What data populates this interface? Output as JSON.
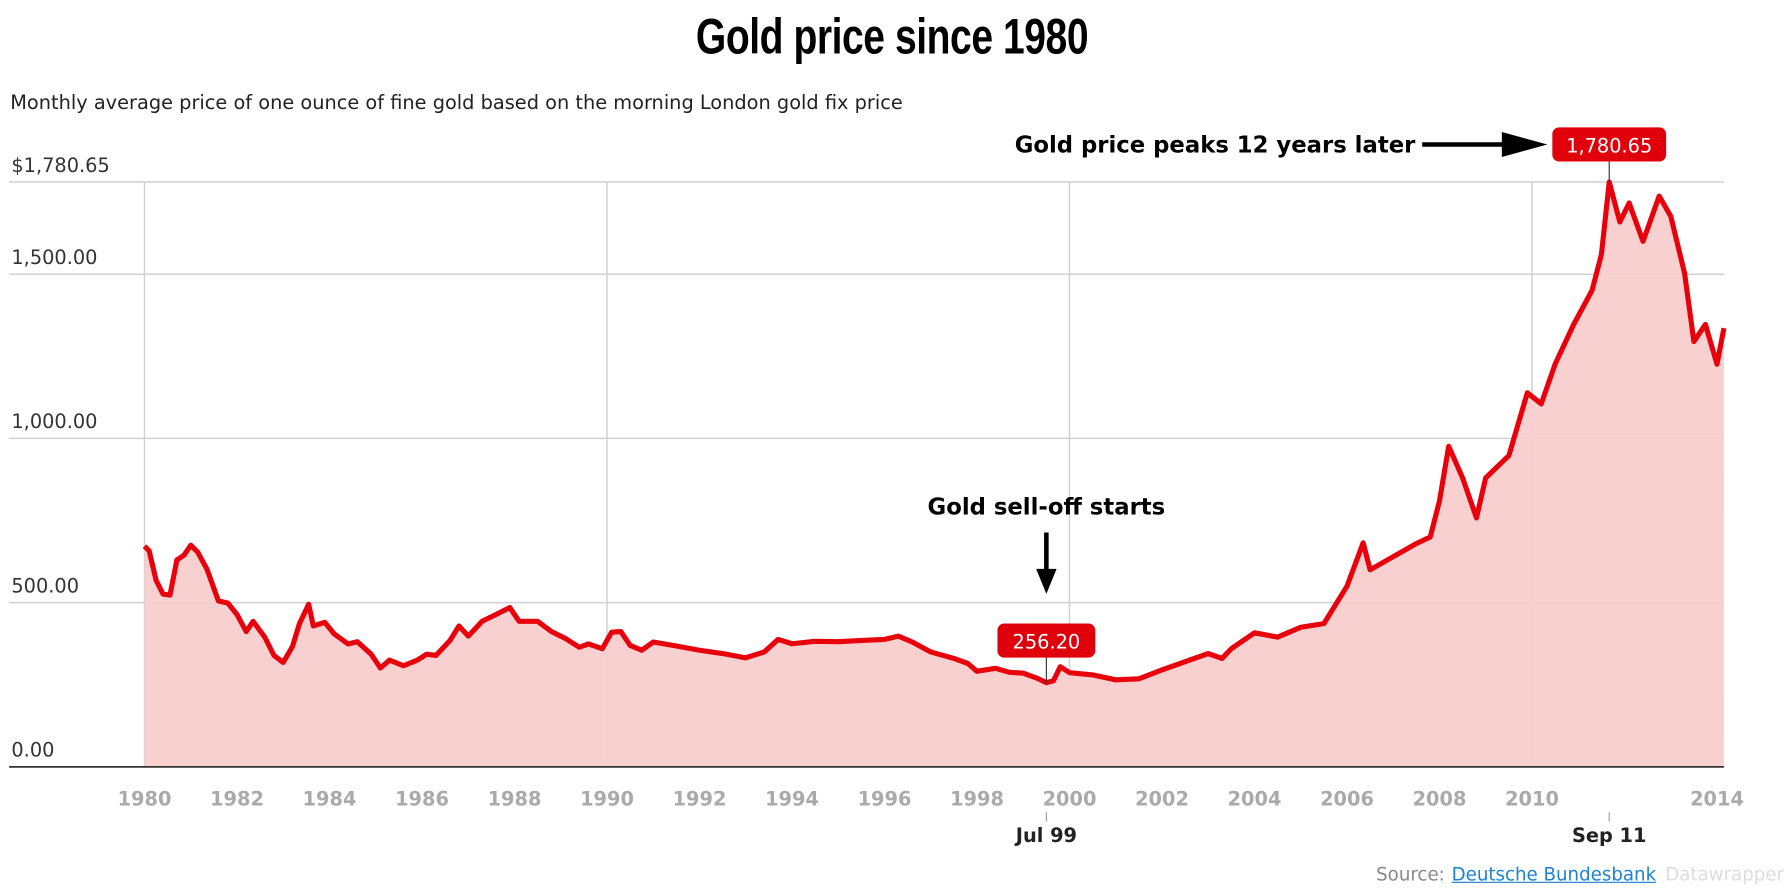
{
  "title": "Gold price since 1980",
  "subtitle": "Monthly average price of one ounce of fine gold based on the morning London gold fix price",
  "footer": {
    "source_label": "Source:",
    "source_link": "Deutsche Bundesbank",
    "credit": "Datawrapper"
  },
  "colors": {
    "line": "#e8000b",
    "area": "#f9cdcd",
    "grid": "#d0d0d0",
    "label_box": "#e0000b"
  },
  "chart_data": {
    "type": "area",
    "title": "Gold price since 1980",
    "subtitle": "Monthly average price of one ounce of fine gold based on the morning London gold fix price",
    "xlabel": "",
    "ylabel": "",
    "xlim": [
      1980,
      2014.15
    ],
    "ylim": [
      0,
      1780.65
    ],
    "grid": true,
    "y_ticks": [
      {
        "value": 0,
        "label": "0.00"
      },
      {
        "value": 500,
        "label": "500.00"
      },
      {
        "value": 1000,
        "label": "1,000.00"
      },
      {
        "value": 1500,
        "label": "1,500.00"
      },
      {
        "value": 1780.65,
        "label": "$1,780.65"
      }
    ],
    "x_ticks": [
      {
        "value": 1980,
        "label": "1980"
      },
      {
        "value": 1982,
        "label": "1982"
      },
      {
        "value": 1984,
        "label": "1984"
      },
      {
        "value": 1986,
        "label": "1986"
      },
      {
        "value": 1988,
        "label": "1988"
      },
      {
        "value": 1990,
        "label": "1990"
      },
      {
        "value": 1992,
        "label": "1992"
      },
      {
        "value": 1994,
        "label": "1994"
      },
      {
        "value": 1996,
        "label": "1996"
      },
      {
        "value": 1998,
        "label": "1998"
      },
      {
        "value": 2000,
        "label": "2000"
      },
      {
        "value": 2002,
        "label": "2002"
      },
      {
        "value": 2004,
        "label": "2004"
      },
      {
        "value": 2006,
        "label": "2006"
      },
      {
        "value": 2008,
        "label": "2008"
      },
      {
        "value": 2010,
        "label": "2010"
      },
      {
        "value": 2014,
        "label": "2014"
      }
    ],
    "x_highlights": [
      {
        "value": 1999.5,
        "label": "Jul 99"
      },
      {
        "value": 2011.67,
        "label": "Sep 11"
      }
    ],
    "points": [
      [
        1980.0,
        672
      ],
      [
        1980.1,
        658
      ],
      [
        1980.25,
        568
      ],
      [
        1980.4,
        526
      ],
      [
        1980.55,
        523
      ],
      [
        1980.7,
        630
      ],
      [
        1980.85,
        644
      ],
      [
        1981.0,
        675
      ],
      [
        1981.15,
        654
      ],
      [
        1981.35,
        602
      ],
      [
        1981.6,
        505
      ],
      [
        1981.8,
        499
      ],
      [
        1982.0,
        464
      ],
      [
        1982.2,
        412
      ],
      [
        1982.35,
        443
      ],
      [
        1982.6,
        395
      ],
      [
        1982.8,
        339
      ],
      [
        1983.0,
        318
      ],
      [
        1983.2,
        367
      ],
      [
        1983.35,
        436
      ],
      [
        1983.55,
        495
      ],
      [
        1983.65,
        429
      ],
      [
        1983.9,
        440
      ],
      [
        1984.1,
        405
      ],
      [
        1984.4,
        374
      ],
      [
        1984.6,
        381
      ],
      [
        1984.9,
        343
      ],
      [
        1985.1,
        301
      ],
      [
        1985.3,
        325
      ],
      [
        1985.6,
        308
      ],
      [
        1985.9,
        325
      ],
      [
        1986.1,
        343
      ],
      [
        1986.3,
        339
      ],
      [
        1986.6,
        384
      ],
      [
        1986.8,
        429
      ],
      [
        1987.0,
        398
      ],
      [
        1987.3,
        443
      ],
      [
        1987.6,
        464
      ],
      [
        1987.9,
        485
      ],
      [
        1988.1,
        443
      ],
      [
        1988.5,
        443
      ],
      [
        1988.8,
        412
      ],
      [
        1989.1,
        391
      ],
      [
        1989.4,
        364
      ],
      [
        1989.6,
        374
      ],
      [
        1989.9,
        360
      ],
      [
        1990.1,
        410
      ],
      [
        1990.3,
        412
      ],
      [
        1990.5,
        370
      ],
      [
        1990.75,
        355
      ],
      [
        1991.0,
        380
      ],
      [
        1991.5,
        368
      ],
      [
        1992.0,
        355
      ],
      [
        1992.5,
        345
      ],
      [
        1993.0,
        332
      ],
      [
        1993.4,
        350
      ],
      [
        1993.7,
        388
      ],
      [
        1994.0,
        375
      ],
      [
        1994.5,
        382
      ],
      [
        1995.0,
        381
      ],
      [
        1995.5,
        385
      ],
      [
        1996.0,
        388
      ],
      [
        1996.3,
        398
      ],
      [
        1996.6,
        380
      ],
      [
        1997.0,
        350
      ],
      [
        1997.5,
        330
      ],
      [
        1997.8,
        315
      ],
      [
        1998.0,
        291
      ],
      [
        1998.4,
        300
      ],
      [
        1998.7,
        288
      ],
      [
        1999.0,
        285
      ],
      [
        1999.3,
        270
      ],
      [
        1999.5,
        256.2
      ],
      [
        1999.65,
        262
      ],
      [
        1999.8,
        305
      ],
      [
        2000.0,
        287
      ],
      [
        2000.5,
        280
      ],
      [
        2001.0,
        265
      ],
      [
        2001.5,
        268
      ],
      [
        2002.0,
        295
      ],
      [
        2002.5,
        320
      ],
      [
        2003.0,
        345
      ],
      [
        2003.3,
        330
      ],
      [
        2003.5,
        360
      ],
      [
        2004.0,
        408
      ],
      [
        2004.5,
        395
      ],
      [
        2005.0,
        425
      ],
      [
        2005.5,
        436
      ],
      [
        2006.0,
        550
      ],
      [
        2006.35,
        682
      ],
      [
        2006.5,
        600
      ],
      [
        2007.0,
        640
      ],
      [
        2007.5,
        680
      ],
      [
        2007.8,
        700
      ],
      [
        2008.0,
        810
      ],
      [
        2008.2,
        976
      ],
      [
        2008.5,
        880
      ],
      [
        2008.8,
        758
      ],
      [
        2009.0,
        880
      ],
      [
        2009.5,
        948
      ],
      [
        2009.9,
        1139
      ],
      [
        2010.2,
        1105
      ],
      [
        2010.5,
        1226
      ],
      [
        2010.9,
        1347
      ],
      [
        2011.3,
        1451
      ],
      [
        2011.5,
        1560
      ],
      [
        2011.67,
        1780.65
      ],
      [
        2011.9,
        1659
      ],
      [
        2012.1,
        1717
      ],
      [
        2012.4,
        1600
      ],
      [
        2012.75,
        1738
      ],
      [
        2013.0,
        1676
      ],
      [
        2013.3,
        1503
      ],
      [
        2013.5,
        1295
      ],
      [
        2013.75,
        1347
      ],
      [
        2014.0,
        1226
      ],
      [
        2014.15,
        1336
      ]
    ],
    "annotations": [
      {
        "text": "Gold sell-off starts",
        "x": 1999.5,
        "value_label": "256.20",
        "value": 256.2
      },
      {
        "text": "Gold price peaks 12 years later",
        "x": 2011.67,
        "value_label": "1,780.65",
        "value": 1780.65
      }
    ]
  }
}
